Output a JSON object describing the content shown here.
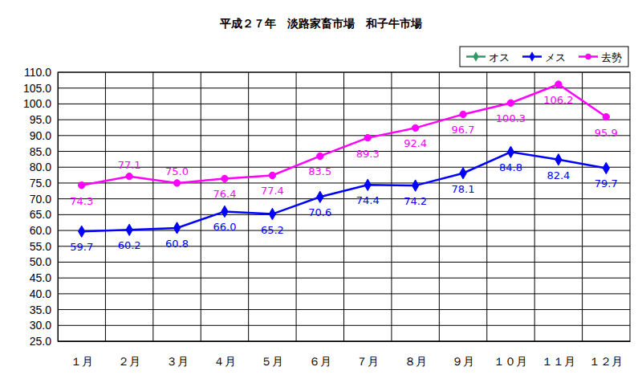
{
  "chart_data": {
    "type": "line",
    "title": "平成２７年　淡路家畜市場　和子牛市場",
    "categories": [
      "１月",
      "２月",
      "３月",
      "４月",
      "５月",
      "６月",
      "７月",
      "８月",
      "９月",
      "１０月",
      "１１月",
      "１２月"
    ],
    "series": [
      {
        "name": "オス",
        "color": "#339966",
        "marker": "diamond",
        "values": [
          null,
          null,
          null,
          null,
          null,
          null,
          null,
          null,
          null,
          null,
          null,
          null
        ]
      },
      {
        "name": "メス",
        "color": "#0000ff",
        "marker": "diamond",
        "values": [
          59.7,
          60.2,
          60.8,
          66.0,
          65.2,
          70.6,
          74.4,
          74.2,
          78.1,
          84.8,
          82.4,
          79.7
        ],
        "value_labels": [
          "59.7",
          "60.2",
          "60.8",
          "66.0",
          "65.2",
          "70.6",
          "74.4",
          "74.2",
          "78.1",
          "84.8",
          "82.4",
          "79.7"
        ]
      },
      {
        "name": "去勢",
        "color": "#ff00ff",
        "marker": "circle",
        "values": [
          74.3,
          77.1,
          75.0,
          76.4,
          77.4,
          83.5,
          89.3,
          92.4,
          96.7,
          100.3,
          106.2,
          95.9
        ],
        "value_labels": [
          "74.3",
          "77.1",
          "75.0",
          "76.4",
          "77.4",
          "83.5",
          "89.3",
          "92.4",
          "96.7",
          "100.3",
          "106.2",
          "95.9"
        ]
      }
    ],
    "ylim": [
      25,
      110
    ],
    "yticks": [
      {
        "value": 25,
        "label": "25.0"
      },
      {
        "value": 30,
        "label": "30.0"
      },
      {
        "value": 35,
        "label": "35.0"
      },
      {
        "value": 40,
        "label": "40.0"
      },
      {
        "value": 45,
        "label": "45.0"
      },
      {
        "value": 50,
        "label": "50.0"
      },
      {
        "value": 55,
        "label": "55.0"
      },
      {
        "value": 60,
        "label": "60.0"
      },
      {
        "value": 65,
        "label": "65.0"
      },
      {
        "value": 70,
        "label": "70.0"
      },
      {
        "value": 75,
        "label": "75.0"
      },
      {
        "value": 80,
        "label": "80.0"
      },
      {
        "value": 85,
        "label": "85.0"
      },
      {
        "value": 90,
        "label": "90.0"
      },
      {
        "value": 95,
        "label": "95.0"
      },
      {
        "value": 100,
        "label": "100.0"
      },
      {
        "value": 105,
        "label": "105.0"
      },
      {
        "value": 110,
        "label": "110.0"
      }
    ],
    "grid": true,
    "legend": "top-right",
    "data_labels": true
  }
}
